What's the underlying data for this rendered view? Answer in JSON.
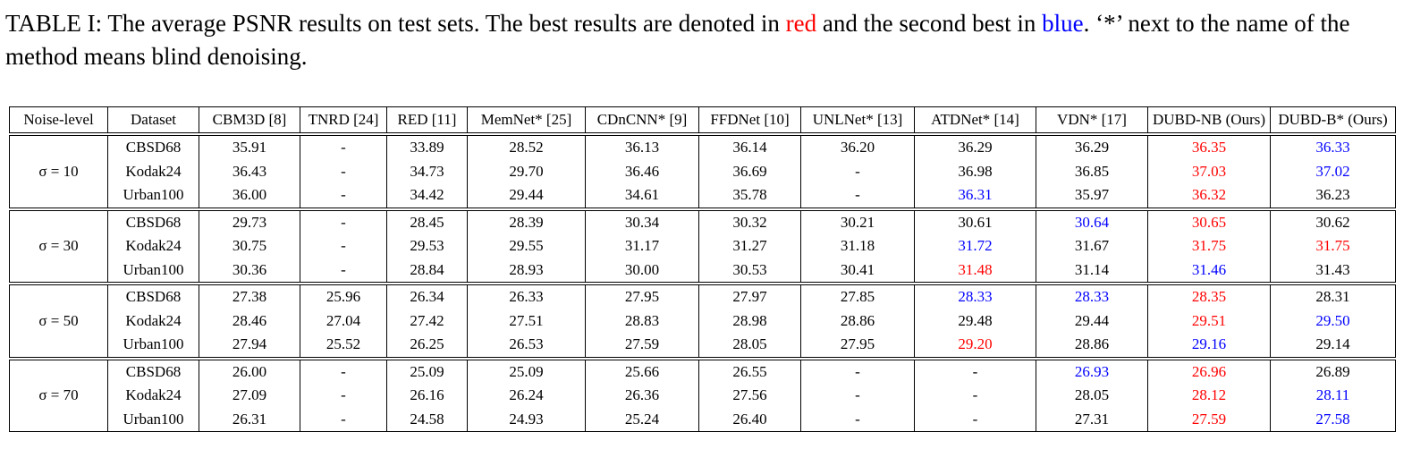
{
  "caption": [
    "TABLE I: The average PSNR results on test sets. The best results are denoted in ",
    "red",
    " and the second best in ",
    "blue",
    ". ‘*’ next to the name of the method means blind denoising."
  ],
  "table": {
    "headers": [
      "Noise-level",
      "Dataset",
      "CBM3D [8]",
      "TNRD [24]",
      "RED [11]",
      "MemNet* [25]",
      "CDnCNN* [9]",
      "FFDNet [10]",
      "UNLNet* [13]",
      "ATDNet* [14]",
      "VDN* [17]",
      "DUBD-NB (Ours)",
      "DUBD-B* (Ours)"
    ],
    "groups": [
      {
        "noise": "σ = 10",
        "rows": [
          {
            "dataset": "CBSD68",
            "values": [
              "35.91",
              "-",
              "33.89",
              "28.52",
              "36.13",
              "36.14",
              "36.20",
              "36.29",
              "36.29",
              {
                "text": "36.35",
                "color": "red"
              },
              {
                "text": "36.33",
                "color": "blue"
              }
            ]
          },
          {
            "dataset": "Kodak24",
            "values": [
              "36.43",
              "-",
              "34.73",
              "29.70",
              "36.46",
              "36.69",
              "-",
              "36.98",
              "36.85",
              {
                "text": "37.03",
                "color": "red"
              },
              {
                "text": "37.02",
                "color": "blue"
              }
            ]
          },
          {
            "dataset": "Urban100",
            "values": [
              "36.00",
              "-",
              "34.42",
              "29.44",
              "34.61",
              "35.78",
              "-",
              {
                "text": "36.31",
                "color": "blue"
              },
              "35.97",
              {
                "text": "36.32",
                "color": "red"
              },
              "36.23"
            ]
          }
        ]
      },
      {
        "noise": "σ = 30",
        "rows": [
          {
            "dataset": "CBSD68",
            "values": [
              "29.73",
              "-",
              "28.45",
              "28.39",
              "30.34",
              "30.32",
              "30.21",
              "30.61",
              {
                "text": "30.64",
                "color": "blue"
              },
              {
                "text": "30.65",
                "color": "red"
              },
              "30.62"
            ]
          },
          {
            "dataset": "Kodak24",
            "values": [
              "30.75",
              "-",
              "29.53",
              "29.55",
              "31.17",
              "31.27",
              "31.18",
              {
                "text": "31.72",
                "color": "blue"
              },
              "31.67",
              {
                "text": "31.75",
                "color": "red"
              },
              {
                "text": "31.75",
                "color": "red"
              }
            ]
          },
          {
            "dataset": "Urban100",
            "values": [
              "30.36",
              "-",
              "28.84",
              "28.93",
              "30.00",
              "30.53",
              "30.41",
              {
                "text": "31.48",
                "color": "red"
              },
              "31.14",
              {
                "text": "31.46",
                "color": "blue"
              },
              "31.43"
            ]
          }
        ]
      },
      {
        "noise": "σ = 50",
        "rows": [
          {
            "dataset": "CBSD68",
            "values": [
              "27.38",
              "25.96",
              "26.34",
              "26.33",
              "27.95",
              "27.97",
              "27.85",
              {
                "text": "28.33",
                "color": "blue"
              },
              {
                "text": "28.33",
                "color": "blue"
              },
              {
                "text": "28.35",
                "color": "red"
              },
              "28.31"
            ]
          },
          {
            "dataset": "Kodak24",
            "values": [
              "28.46",
              "27.04",
              "27.42",
              "27.51",
              "28.83",
              "28.98",
              "28.86",
              "29.48",
              "29.44",
              {
                "text": "29.51",
                "color": "red"
              },
              {
                "text": "29.50",
                "color": "blue"
              }
            ]
          },
          {
            "dataset": "Urban100",
            "values": [
              "27.94",
              "25.52",
              "26.25",
              "26.53",
              "27.59",
              "28.05",
              "27.95",
              {
                "text": "29.20",
                "color": "red"
              },
              "28.86",
              {
                "text": "29.16",
                "color": "blue"
              },
              "29.14"
            ]
          }
        ]
      },
      {
        "noise": "σ = 70",
        "rows": [
          {
            "dataset": "CBSD68",
            "values": [
              "26.00",
              "-",
              "25.09",
              "25.09",
              "25.66",
              "26.55",
              "-",
              "-",
              {
                "text": "26.93",
                "color": "blue"
              },
              {
                "text": "26.96",
                "color": "red"
              },
              "26.89"
            ]
          },
          {
            "dataset": "Kodak24",
            "values": [
              "27.09",
              "-",
              "26.16",
              "26.24",
              "26.36",
              "27.56",
              "-",
              "-",
              "28.05",
              {
                "text": "28.12",
                "color": "red"
              },
              {
                "text": "28.11",
                "color": "blue"
              }
            ]
          },
          {
            "dataset": "Urban100",
            "values": [
              "26.31",
              "-",
              "24.58",
              "24.93",
              "25.24",
              "26.40",
              "-",
              "-",
              "27.31",
              {
                "text": "27.59",
                "color": "red"
              },
              {
                "text": "27.58",
                "color": "blue"
              }
            ]
          }
        ]
      }
    ]
  }
}
